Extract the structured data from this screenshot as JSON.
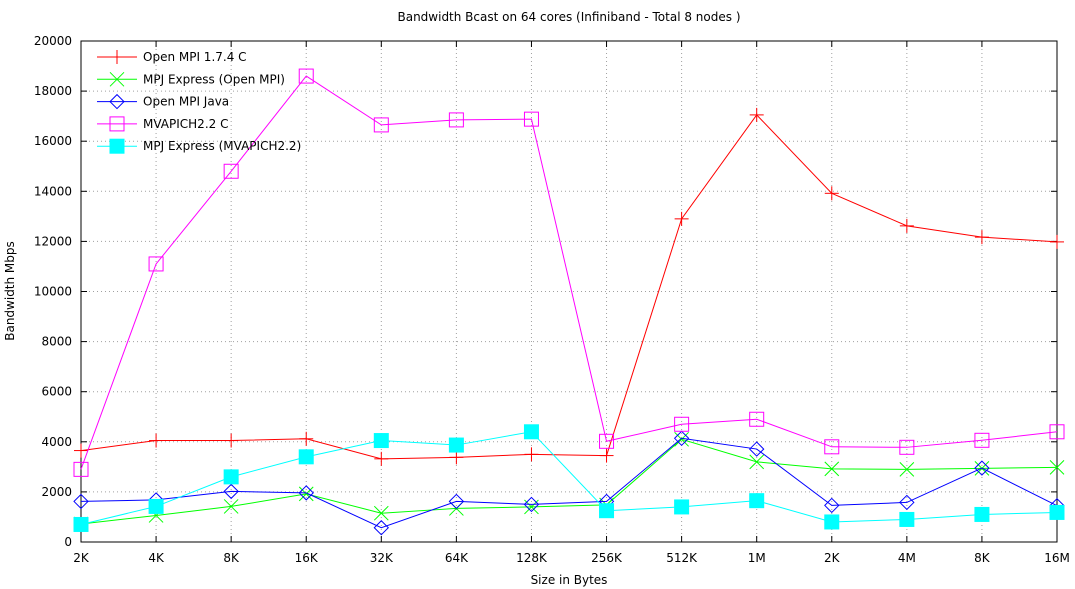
{
  "chart_data": {
    "type": "line",
    "title": "Bandwidth Bcast on 64 cores (Infiniband - Total 8 nodes )",
    "xlabel": "Size in Bytes",
    "ylabel": "Bandwidth Mbps",
    "categories": [
      "2K",
      "4K",
      "8K",
      "16K",
      "32K",
      "64K",
      "128K",
      "256K",
      "512K",
      "1M",
      "2K",
      "4M",
      "8K",
      "16M"
    ],
    "ylim": [
      0,
      20000
    ],
    "yticks": [
      0,
      2000,
      4000,
      6000,
      8000,
      10000,
      12000,
      14000,
      16000,
      18000,
      20000
    ],
    "grid": true,
    "legend_position": "top-left",
    "series": [
      {
        "name": "Open MPI 1.7.4 C",
        "color": "#ff0000",
        "marker": "plus",
        "values": [
          3650,
          4050,
          4050,
          4120,
          3320,
          3380,
          3500,
          3450,
          12900,
          17050,
          13920,
          12620,
          12170,
          11980
        ]
      },
      {
        "name": "MPJ Express (Open MPI)",
        "color": "#00ff00",
        "marker": "cross",
        "values": [
          720,
          1060,
          1420,
          1920,
          1150,
          1340,
          1400,
          1480,
          4100,
          3200,
          2920,
          2900,
          2940,
          2980
        ]
      },
      {
        "name": "Open MPI Java",
        "color": "#0000ff",
        "marker": "diamond",
        "values": [
          1620,
          1680,
          2020,
          1960,
          570,
          1620,
          1500,
          1620,
          4140,
          3710,
          1460,
          1580,
          2950,
          1450
        ]
      },
      {
        "name": "MVAPICH2.2 C",
        "color": "#ff00ff",
        "marker": "square-open",
        "values": [
          2900,
          11100,
          14800,
          18600,
          16650,
          16850,
          16880,
          4020,
          4700,
          4900,
          3800,
          3780,
          4060,
          4400
        ]
      },
      {
        "name": "MPJ Express (MVAPICH2.2)",
        "color": "#00ffff",
        "marker": "square-filled",
        "values": [
          700,
          1420,
          2600,
          3400,
          4050,
          3870,
          4400,
          1250,
          1400,
          1650,
          800,
          900,
          1100,
          1180
        ]
      }
    ]
  }
}
